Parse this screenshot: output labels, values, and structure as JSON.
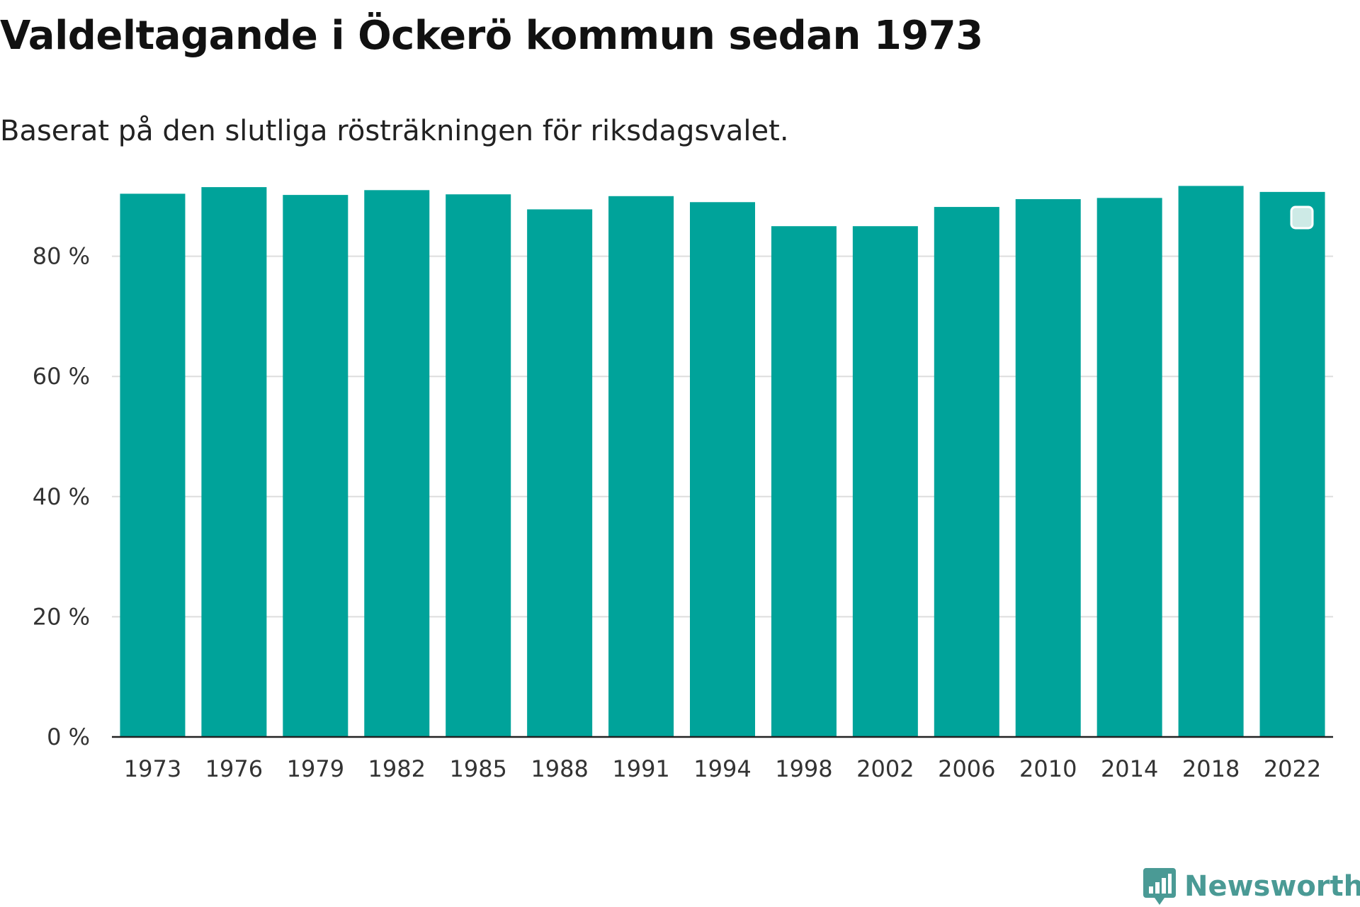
{
  "title": "Valdeltagande i Öckerö kommun sedan 1973",
  "subtitle": "Baserat på den slutliga rösträkningen för riksdagsvalet.",
  "brand": {
    "name": "Newsworthy",
    "icon": "bar-chart-speech-bubble-icon",
    "color": "#4a9a95"
  },
  "colors": {
    "bar": "#00a39a",
    "grid": "#dddddd",
    "axis": "#222222"
  },
  "chart_data": {
    "type": "bar",
    "categories": [
      "1973",
      "1976",
      "1979",
      "1982",
      "1985",
      "1988",
      "1991",
      "1994",
      "1998",
      "2002",
      "2006",
      "2010",
      "2014",
      "2018",
      "2022"
    ],
    "series": [
      {
        "values": [
          90.4,
          91.5,
          90.2,
          91.0,
          90.3,
          87.8,
          90.0,
          89.0,
          85.0,
          85.0,
          88.2,
          89.5,
          89.7,
          91.7,
          90.7
        ]
      }
    ],
    "yticks": [
      "0 %",
      "20 %",
      "40 %",
      "60 %",
      "80 %"
    ],
    "ytick_values": [
      0,
      20,
      40,
      60,
      80
    ],
    "ylim": [
      0,
      100
    ],
    "grid": true,
    "xlabel": "",
    "ylabel": ""
  }
}
